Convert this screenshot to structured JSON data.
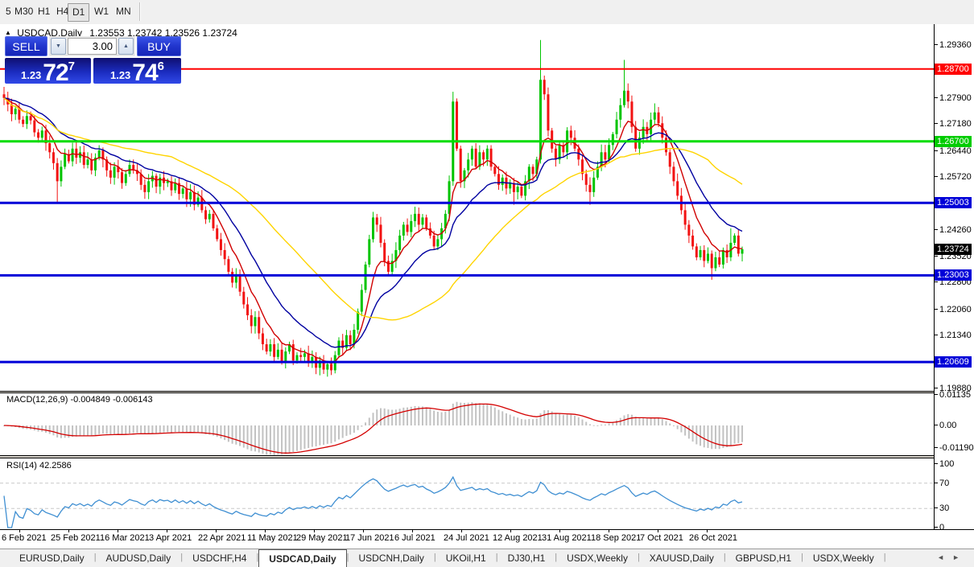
{
  "toolbar": {
    "timeframes": [
      "5",
      "M30",
      "H1",
      "H4",
      "D1",
      "W1",
      "MN"
    ],
    "active_timeframe": "D1"
  },
  "chart": {
    "icon": "▲",
    "title": "USDCAD,Daily",
    "ohlc": "1.23553 1.23742 1.23526 1.23724"
  },
  "trade_panel": {
    "sell_label": "SELL",
    "buy_label": "BUY",
    "volume": "3.00",
    "sell_price": {
      "small": "1.23",
      "big": "72",
      "sup": "7"
    },
    "buy_price": {
      "small": "1.23",
      "big": "74",
      "sup": "6"
    }
  },
  "price_axis": {
    "ticks": [
      "1.29360",
      "1.28640",
      "1.27900",
      "1.27180",
      "1.26440",
      "1.25720",
      "1.24260",
      "1.23520",
      "1.22800",
      "1.22060",
      "1.21340",
      "1.19880"
    ],
    "tags": [
      {
        "text": "1.28700",
        "color": "#ff0000",
        "name": "resistance-tag"
      },
      {
        "text": "1.26700",
        "color": "#00cc00",
        "name": "resistance-tag"
      },
      {
        "text": "1.25003",
        "color": "#0000d8",
        "name": "level-tag"
      },
      {
        "text": "1.23724",
        "color": "#000000",
        "name": "current-price-tag"
      },
      {
        "text": "1.23003",
        "color": "#0000d8",
        "name": "level-tag"
      },
      {
        "text": "1.20609",
        "color": "#0000d8",
        "name": "support-tag"
      }
    ]
  },
  "indicators": {
    "macd": {
      "label": "MACD(12,26,9) -0.004849 -0.006143",
      "axis": [
        {
          "text": "0.01135",
          "v": 0.01135
        },
        {
          "text": "0.00",
          "v": 0
        },
        {
          "text": "-0.011904",
          "v": -0.011904
        }
      ]
    },
    "rsi": {
      "label": "RSI(14) 42.2586",
      "axis": [
        {
          "text": "100",
          "v": 100
        },
        {
          "text": "70",
          "v": 70
        },
        {
          "text": "30",
          "v": 30
        },
        {
          "text": "0",
          "v": 0
        }
      ],
      "levels": [
        70,
        30
      ]
    }
  },
  "date_axis": [
    "6 Feb 2021",
    "25 Feb 2021",
    "16 Mar 2021",
    "3 Apr 2021",
    "22 Apr 2021",
    "11 May 2021",
    "29 May 2021",
    "17 Jun 2021",
    "6 Jul 2021",
    "24 Jul 2021",
    "12 Aug 2021",
    "31 Aug 2021",
    "18 Sep 2021",
    "7 Oct 2021",
    "26 Oct 2021"
  ],
  "tabs": {
    "items": [
      "EURUSD,Daily",
      "AUDUSD,Daily",
      "USDCHF,H4",
      "USDCAD,Daily",
      "USDCNH,Daily",
      "UKOil,H1",
      "DJ30,H1",
      "USDX,Weekly",
      "XAUUSD,Daily",
      "GBPUSD,H1",
      "USDX,Weekly"
    ],
    "active_index": 3,
    "left_arrow": "◄",
    "right_arrow": "►"
  },
  "chart_data": {
    "type": "candlestick",
    "symbol": "USDCAD",
    "timeframe": "Daily",
    "title": "USDCAD,Daily",
    "open_first": 1.28,
    "closes": [
      1.279,
      1.2772,
      1.2745,
      1.276,
      1.273,
      1.2718,
      1.274,
      1.2728,
      1.2695,
      1.268,
      1.27,
      1.2665,
      1.264,
      1.261,
      1.256,
      1.26,
      1.2635,
      1.2615,
      1.265,
      1.2625,
      1.264,
      1.2605,
      1.262,
      1.259,
      1.2625,
      1.2645,
      1.262,
      1.259,
      1.257,
      1.26,
      1.2585,
      1.2555,
      1.258,
      1.2605,
      1.259,
      1.258,
      1.255,
      1.253,
      1.256,
      1.2575,
      1.2545,
      1.257,
      1.2555,
      1.256,
      1.2535,
      1.2555,
      1.2525,
      1.254,
      1.251,
      1.253,
      1.2495,
      1.2515,
      1.248,
      1.2455,
      1.247,
      1.243,
      1.24,
      1.237,
      1.2345,
      1.231,
      1.228,
      1.23,
      1.2255,
      1.222,
      1.219,
      1.216,
      1.2185,
      1.214,
      1.211,
      1.209,
      1.211,
      1.2075,
      1.2095,
      1.206,
      1.209,
      1.211,
      1.2065,
      1.208,
      1.2075,
      1.2085,
      1.206,
      1.2075,
      1.2045,
      1.2065,
      1.204,
      1.2055,
      1.2038,
      1.208,
      1.212,
      1.21,
      1.2135,
      1.211,
      1.215,
      1.22,
      1.226,
      1.233,
      1.24,
      1.246,
      1.244,
      1.239,
      1.234,
      1.231,
      1.234,
      1.237,
      1.241,
      1.244,
      1.242,
      1.245,
      1.247,
      1.244,
      1.246,
      1.243,
      1.241,
      1.238,
      1.24,
      1.243,
      1.247,
      1.256,
      1.278,
      1.265,
      1.256,
      1.259,
      1.262,
      1.265,
      1.26,
      1.264,
      1.262,
      1.265,
      1.26,
      1.258,
      1.255,
      1.257,
      1.254,
      1.2555,
      1.253,
      1.2545,
      1.252,
      1.256,
      1.26,
      1.258,
      1.262,
      1.284,
      1.28,
      1.27,
      1.265,
      1.262,
      1.266,
      1.264,
      1.27,
      1.268,
      1.265,
      1.262,
      1.258,
      1.255,
      1.253,
      1.257,
      1.26,
      1.264,
      1.262,
      1.266,
      1.269,
      1.273,
      1.277,
      1.281,
      1.278,
      1.271,
      1.265,
      1.268,
      1.271,
      1.269,
      1.273,
      1.275,
      1.272,
      1.268,
      1.264,
      1.26,
      1.256,
      1.252,
      1.248,
      1.244,
      1.241,
      1.238,
      1.235,
      1.237,
      1.234,
      1.236,
      1.232,
      1.235,
      1.233,
      1.237,
      1.235,
      1.239,
      1.241,
      1.236,
      1.23724
    ],
    "wick_overrides": {
      "14": {
        "low": 1.25
      },
      "84": {
        "low": 1.2028
      },
      "86": {
        "low": 1.2025
      },
      "118": {
        "high": 1.2807
      },
      "134": {
        "low": 1.2495
      },
      "141": {
        "high": 1.295
      },
      "154": {
        "low": 1.2495
      },
      "163": {
        "high": 1.2895
      },
      "171": {
        "high": 1.2775
      },
      "186": {
        "low": 1.2288
      },
      "191": {
        "high": 1.243
      }
    },
    "colors": {
      "up": "#00c400",
      "down": "#f21212",
      "macd_bar": "#c2c2c2",
      "macd_signal": "#d40000",
      "rsi_line": "#3f8fd2",
      "rsi_level": "#c8c8c8"
    },
    "moving_averages": [
      {
        "name": "ema-fast",
        "method": "ema",
        "period": 8,
        "color": "#d00000"
      },
      {
        "name": "ema-mid",
        "method": "ema",
        "period": 20,
        "color": "#0000a0"
      },
      {
        "name": "sma-slow",
        "method": "sma",
        "period": 45,
        "color": "#ffd400"
      }
    ],
    "macd_params": [
      12,
      26,
      9
    ],
    "rsi_period": 14,
    "hlines": [
      {
        "price": 1.287,
        "color": "#ff0000",
        "width": 2,
        "name": "hline-1.28700"
      },
      {
        "price": 1.267,
        "color": "#00dd00",
        "width": 3,
        "name": "hline-1.26700"
      },
      {
        "price": 1.25003,
        "color": "#0000d8",
        "width": 3,
        "name": "hline-1.25003"
      },
      {
        "price": 1.23003,
        "color": "#0000d8",
        "width": 3,
        "name": "hline-1.23003"
      },
      {
        "price": 1.20609,
        "color": "#0000d8",
        "width": 3,
        "name": "hline-1.20609"
      }
    ],
    "ylim": [
      1.1988,
      1.2936
    ]
  }
}
